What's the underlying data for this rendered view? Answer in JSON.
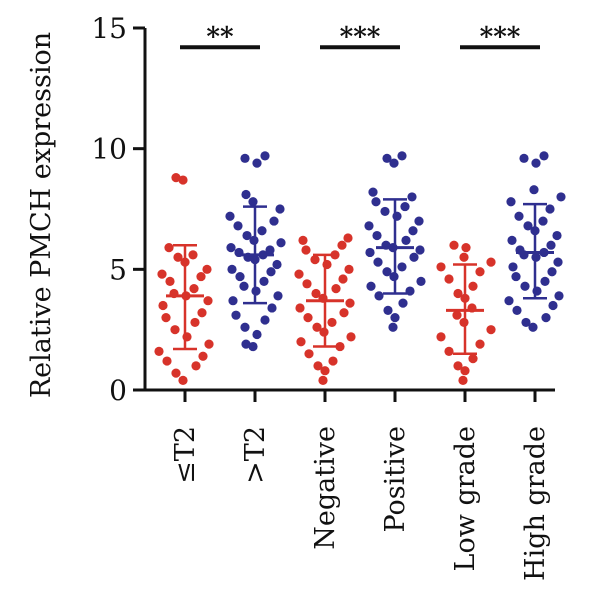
{
  "chart_data": {
    "type": "scatter",
    "ylabel": "Relative PMCH expression",
    "ylim": [
      0,
      15
    ],
    "yticks": [
      0,
      5,
      10,
      15
    ],
    "grid": false,
    "colors": {
      "red": "#d7332a",
      "blue": "#2f2f8f",
      "axis": "#111111"
    },
    "groups": [
      {
        "category": "≤T2",
        "color": "red",
        "mean": 3.9,
        "sd_low": 1.7,
        "sd_high": 6.0,
        "values": [
          8.7,
          8.8,
          5.9,
          5.6,
          5.5,
          5.3,
          5.0,
          4.8,
          4.7,
          4.5,
          4.2,
          4.0,
          3.9,
          3.7,
          3.5,
          3.2,
          3.0,
          2.8,
          2.5,
          2.2,
          1.9,
          1.6,
          1.4,
          1.2,
          1.0,
          0.7,
          0.4
        ]
      },
      {
        "category": ">T2",
        "color": "blue",
        "mean": 5.6,
        "sd_low": 3.6,
        "sd_high": 7.6,
        "values": [
          9.7,
          9.6,
          9.4,
          8.1,
          7.8,
          7.5,
          7.2,
          7.0,
          6.8,
          6.6,
          6.4,
          6.2,
          6.1,
          5.9,
          5.8,
          5.7,
          5.6,
          5.5,
          5.4,
          5.2,
          5.0,
          4.9,
          4.7,
          4.5,
          4.3,
          4.1,
          3.9,
          3.7,
          3.4,
          3.1,
          2.9,
          2.6,
          2.3,
          1.9,
          1.8
        ]
      },
      {
        "category": "Negative",
        "color": "red",
        "mean": 3.7,
        "sd_low": 1.8,
        "sd_high": 5.6,
        "values": [
          6.3,
          6.2,
          6.0,
          5.8,
          5.6,
          5.4,
          5.2,
          5.0,
          4.8,
          4.6,
          4.4,
          4.2,
          4.0,
          3.8,
          3.6,
          3.4,
          3.2,
          3.0,
          2.8,
          2.6,
          2.4,
          2.2,
          2.0,
          1.8,
          1.5,
          1.2,
          1.0,
          0.8,
          0.4
        ]
      },
      {
        "category": "Positive",
        "color": "blue",
        "mean": 5.9,
        "sd_low": 4.0,
        "sd_high": 7.9,
        "values": [
          9.7,
          9.6,
          9.4,
          8.2,
          8.0,
          7.8,
          7.6,
          7.4,
          7.2,
          7.0,
          6.8,
          6.6,
          6.4,
          6.2,
          6.0,
          5.9,
          5.8,
          5.7,
          5.5,
          5.3,
          5.1,
          4.9,
          4.7,
          4.5,
          4.3,
          4.1,
          3.9,
          3.6,
          3.3,
          3.0,
          2.6
        ]
      },
      {
        "category": "Low grade",
        "color": "red",
        "mean": 3.3,
        "sd_low": 1.5,
        "sd_high": 5.2,
        "values": [
          6.0,
          5.9,
          5.5,
          5.3,
          5.1,
          4.9,
          4.6,
          4.3,
          4.0,
          3.8,
          3.4,
          3.1,
          2.8,
          2.5,
          2.2,
          1.9,
          1.6,
          1.3,
          1.0,
          0.8,
          0.4
        ]
      },
      {
        "category": "High grade",
        "color": "blue",
        "mean": 5.7,
        "sd_low": 3.8,
        "sd_high": 7.7,
        "values": [
          9.7,
          9.6,
          9.4,
          8.3,
          8.0,
          7.8,
          7.5,
          7.2,
          7.0,
          6.8,
          6.6,
          6.4,
          6.2,
          6.0,
          5.8,
          5.7,
          5.6,
          5.5,
          5.3,
          5.1,
          4.9,
          4.7,
          4.5,
          4.3,
          4.1,
          3.9,
          3.7,
          3.5,
          3.3,
          3.0,
          2.8,
          2.6
        ]
      }
    ],
    "comparisons": [
      {
        "from": 0,
        "to": 1,
        "label": "**"
      },
      {
        "from": 2,
        "to": 3,
        "label": "***"
      },
      {
        "from": 4,
        "to": 5,
        "label": "***"
      }
    ],
    "significance_y": 14.2
  }
}
